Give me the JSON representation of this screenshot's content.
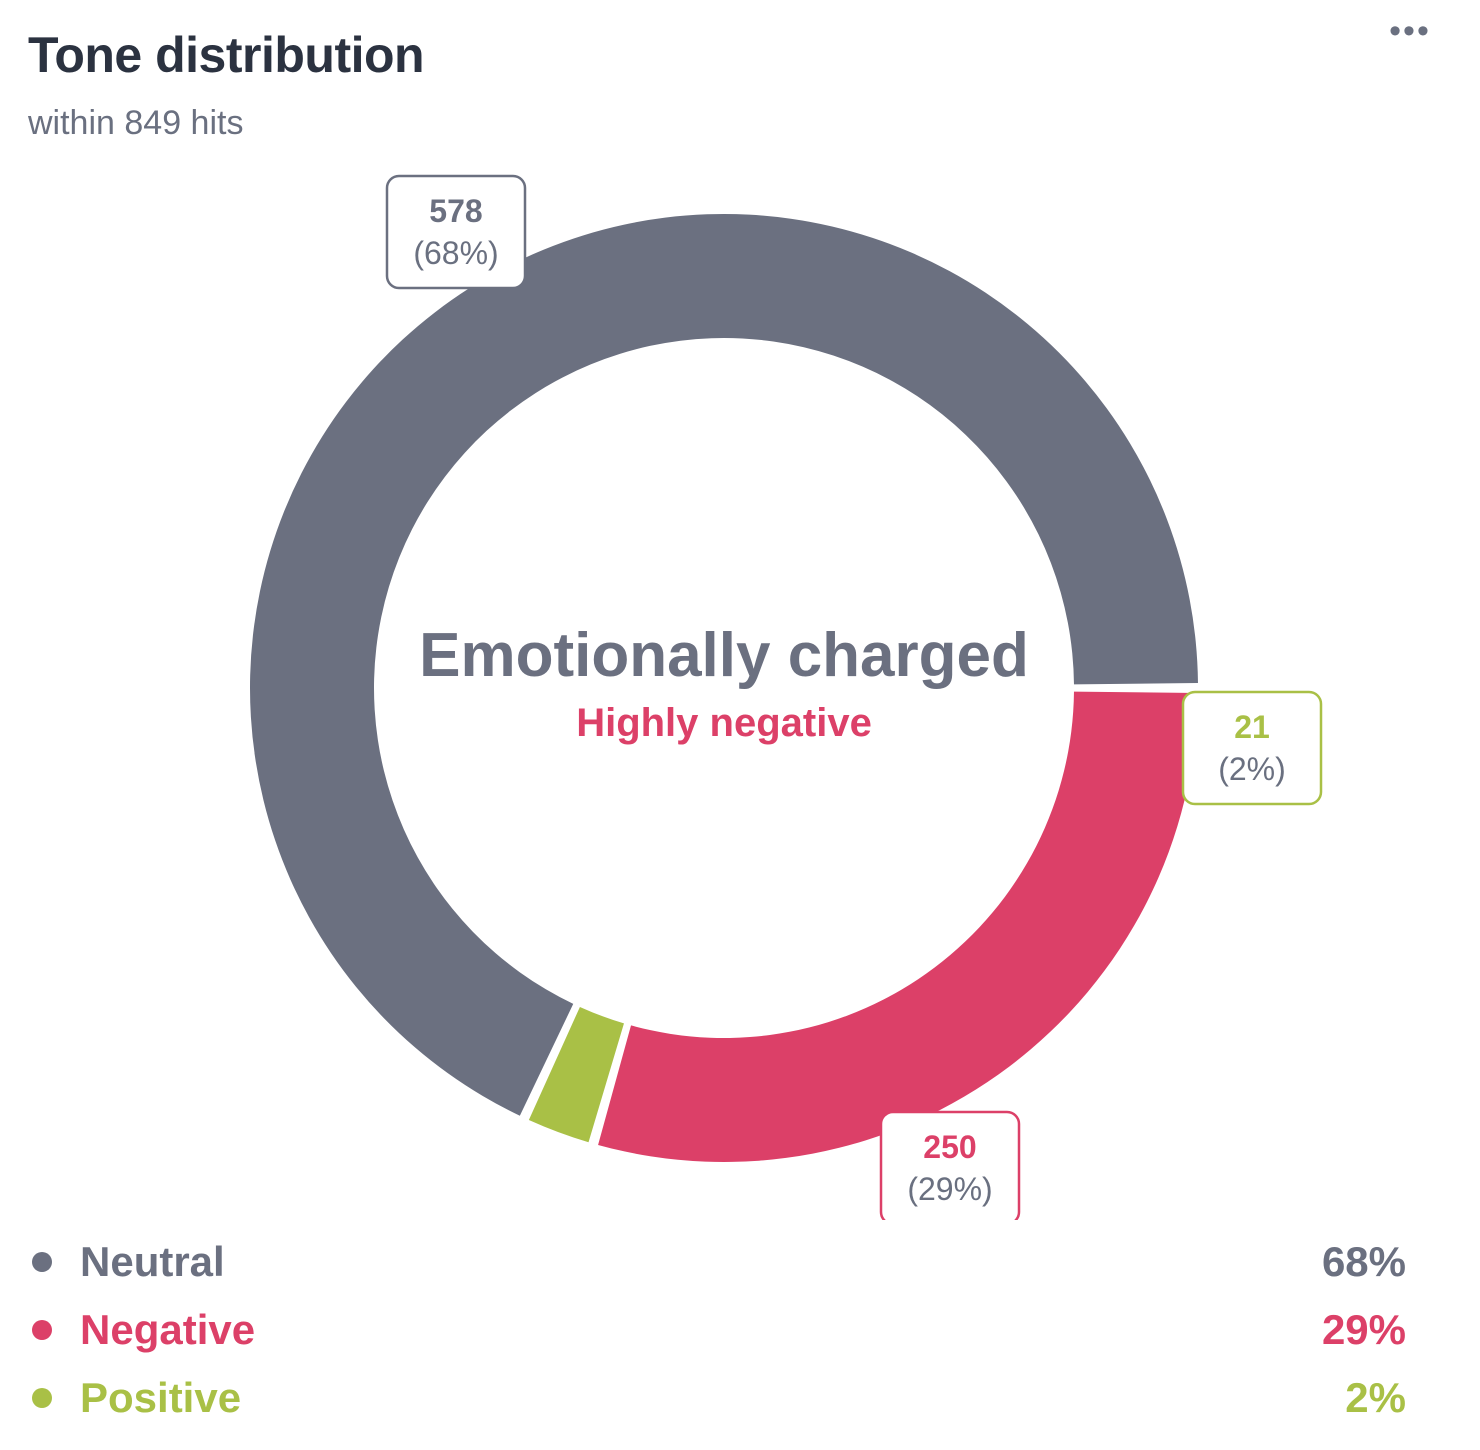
{
  "header": {
    "title": "Tone distribution",
    "subtitle": "within 849 hits",
    "menu_icon": "more-horizontal-icon",
    "menu_glyph": "•••"
  },
  "center": {
    "title": "Emotionally charged",
    "subtitle": "Highly negative"
  },
  "chart_data": {
    "type": "pie",
    "variant": "donut",
    "total": 849,
    "start_angle_deg": 0,
    "direction": "counterclockwise",
    "series": [
      {
        "name": "Neutral",
        "value": 578,
        "percent": "68%",
        "color": "#6b7080"
      },
      {
        "name": "Positive",
        "value": 21,
        "percent": "2%",
        "color": "#a9c046"
      },
      {
        "name": "Negative",
        "value": 250,
        "percent": "29%",
        "color": "#dc4068"
      }
    ]
  },
  "legend": [
    {
      "label": "Neutral",
      "pct": "68%"
    },
    {
      "label": "Negative",
      "pct": "29%"
    },
    {
      "label": "Positive",
      "pct": "2%"
    }
  ]
}
